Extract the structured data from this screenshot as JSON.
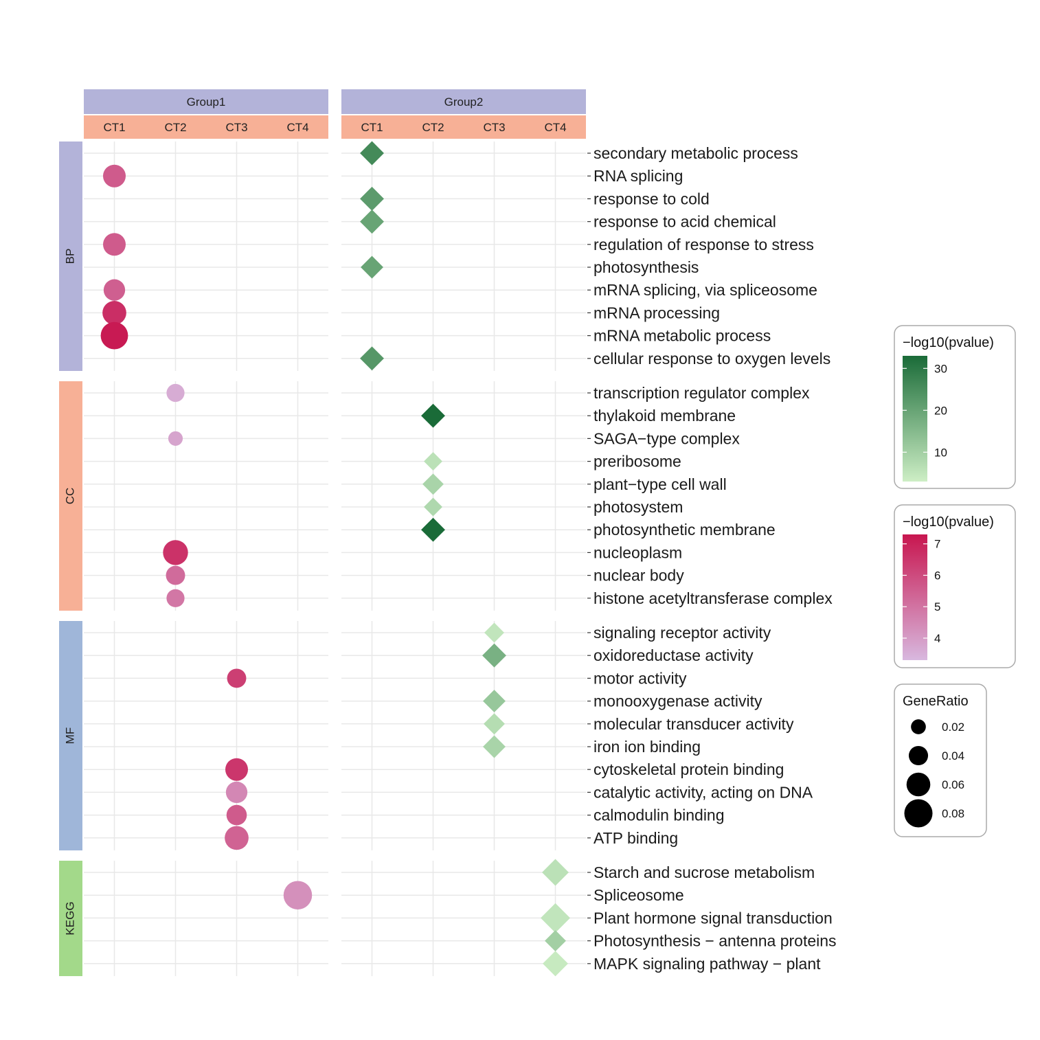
{
  "chart_data": {
    "type": "scatter",
    "groups": [
      {
        "name": "Group1",
        "cell_types": [
          "CT1",
          "CT2",
          "CT3",
          "CT4"
        ],
        "marker": "circle",
        "color_scale": "pink-red"
      },
      {
        "name": "Group2",
        "cell_types": [
          "CT1",
          "CT2",
          "CT3",
          "CT4"
        ],
        "marker": "diamond",
        "color_scale": "green"
      }
    ],
    "categories": [
      {
        "name": "BP",
        "color": "#b3b3d9",
        "terms": [
          "secondary metabolic process",
          "RNA splicing",
          "response to cold",
          "response to acid chemical",
          "regulation of response to stress",
          "photosynthesis",
          "mRNA splicing, via spliceosome",
          "mRNA processing",
          "mRNA metabolic process",
          "cellular response to oxygen levels"
        ]
      },
      {
        "name": "CC",
        "color": "#f7b096",
        "terms": [
          "transcription regulator complex",
          "thylakoid membrane",
          "SAGA−type complex",
          "preribosome",
          "plant−type cell wall",
          "photosystem",
          "photosynthetic membrane",
          "nucleoplasm",
          "nuclear body",
          "histone acetyltransferase complex"
        ]
      },
      {
        "name": "MF",
        "color": "#9fb6d9",
        "terms": [
          "signaling receptor activity",
          "oxidoreductase activity",
          "motor activity",
          "monooxygenase activity",
          "molecular transducer activity",
          "iron ion binding",
          "cytoskeletal protein binding",
          "catalytic activity, acting on DNA",
          "calmodulin binding",
          "ATP binding"
        ]
      },
      {
        "name": "KEGG",
        "color": "#a3d98a",
        "terms": [
          "Starch and sucrose metabolism",
          "Spliceosome",
          "Plant hormone signal transduction",
          "Photosynthesis − antenna proteins",
          "MAPK signaling pathway − plant"
        ]
      }
    ],
    "points": [
      {
        "group": "Group1",
        "ct": "CT1",
        "term": "RNA splicing",
        "neglog10p": 5.6,
        "gene_ratio": 0.05
      },
      {
        "group": "Group1",
        "ct": "CT1",
        "term": "regulation of response to stress",
        "neglog10p": 5.6,
        "gene_ratio": 0.05
      },
      {
        "group": "Group1",
        "ct": "CT1",
        "term": "mRNA splicing, via spliceosome",
        "neglog10p": 5.5,
        "gene_ratio": 0.045
      },
      {
        "group": "Group1",
        "ct": "CT1",
        "term": "mRNA processing",
        "neglog10p": 6.7,
        "gene_ratio": 0.055
      },
      {
        "group": "Group1",
        "ct": "CT1",
        "term": "mRNA metabolic process",
        "neglog10p": 7.2,
        "gene_ratio": 0.07
      },
      {
        "group": "Group1",
        "ct": "CT2",
        "term": "transcription regulator complex",
        "neglog10p": 3.6,
        "gene_ratio": 0.03
      },
      {
        "group": "Group1",
        "ct": "CT2",
        "term": "SAGA−type complex",
        "neglog10p": 3.8,
        "gene_ratio": 0.015
      },
      {
        "group": "Group1",
        "ct": "CT2",
        "term": "nucleoplasm",
        "neglog10p": 6.6,
        "gene_ratio": 0.06
      },
      {
        "group": "Group1",
        "ct": "CT2",
        "term": "nuclear body",
        "neglog10p": 5.2,
        "gene_ratio": 0.035
      },
      {
        "group": "Group1",
        "ct": "CT2",
        "term": "histone acetyltransferase complex",
        "neglog10p": 4.9,
        "gene_ratio": 0.03
      },
      {
        "group": "Group1",
        "ct": "CT3",
        "term": "motor activity",
        "neglog10p": 6.3,
        "gene_ratio": 0.035
      },
      {
        "group": "Group1",
        "ct": "CT3",
        "term": "cytoskeletal protein binding",
        "neglog10p": 6.5,
        "gene_ratio": 0.05
      },
      {
        "group": "Group1",
        "ct": "CT3",
        "term": "catalytic activity, acting on DNA",
        "neglog10p": 4.5,
        "gene_ratio": 0.045
      },
      {
        "group": "Group1",
        "ct": "CT3",
        "term": "calmodulin binding",
        "neglog10p": 5.6,
        "gene_ratio": 0.04
      },
      {
        "group": "Group1",
        "ct": "CT3",
        "term": "ATP binding",
        "neglog10p": 5.4,
        "gene_ratio": 0.055
      },
      {
        "group": "Group1",
        "ct": "CT4",
        "term": "Spliceosome",
        "neglog10p": 4.3,
        "gene_ratio": 0.075
      },
      {
        "group": "Group2",
        "ct": "CT1",
        "term": "secondary metabolic process",
        "neglog10p": 26,
        "gene_ratio": 0.04
      },
      {
        "group": "Group2",
        "ct": "CT1",
        "term": "response to cold",
        "neglog10p": 22,
        "gene_ratio": 0.04
      },
      {
        "group": "Group2",
        "ct": "CT1",
        "term": "response to acid chemical",
        "neglog10p": 20,
        "gene_ratio": 0.04
      },
      {
        "group": "Group2",
        "ct": "CT1",
        "term": "photosynthesis",
        "neglog10p": 20,
        "gene_ratio": 0.035
      },
      {
        "group": "Group2",
        "ct": "CT1",
        "term": "cellular response to oxygen levels",
        "neglog10p": 23,
        "gene_ratio": 0.04
      },
      {
        "group": "Group2",
        "ct": "CT2",
        "term": "thylakoid membrane",
        "neglog10p": 33,
        "gene_ratio": 0.04
      },
      {
        "group": "Group2",
        "ct": "CT2",
        "term": "preribosome",
        "neglog10p": 6,
        "gene_ratio": 0.02
      },
      {
        "group": "Group2",
        "ct": "CT2",
        "term": "plant−type cell wall",
        "neglog10p": 9,
        "gene_ratio": 0.03
      },
      {
        "group": "Group2",
        "ct": "CT2",
        "term": "photosystem",
        "neglog10p": 8,
        "gene_ratio": 0.02
      },
      {
        "group": "Group2",
        "ct": "CT2",
        "term": "photosynthetic membrane",
        "neglog10p": 33,
        "gene_ratio": 0.04
      },
      {
        "group": "Group2",
        "ct": "CT3",
        "term": "signaling receptor activity",
        "neglog10p": 5,
        "gene_ratio": 0.025
      },
      {
        "group": "Group2",
        "ct": "CT3",
        "term": "oxidoreductase activity",
        "neglog10p": 17,
        "gene_ratio": 0.04
      },
      {
        "group": "Group2",
        "ct": "CT3",
        "term": "monooxygenase activity",
        "neglog10p": 12,
        "gene_ratio": 0.035
      },
      {
        "group": "Group2",
        "ct": "CT3",
        "term": "molecular transducer activity",
        "neglog10p": 7,
        "gene_ratio": 0.03
      },
      {
        "group": "Group2",
        "ct": "CT3",
        "term": "iron ion binding",
        "neglog10p": 9,
        "gene_ratio": 0.035
      },
      {
        "group": "Group2",
        "ct": "CT4",
        "term": "Starch and sucrose metabolism",
        "neglog10p": 6,
        "gene_ratio": 0.05
      },
      {
        "group": "Group2",
        "ct": "CT4",
        "term": "Plant hormone signal transduction",
        "neglog10p": 5,
        "gene_ratio": 0.06
      },
      {
        "group": "Group2",
        "ct": "CT4",
        "term": "Photosynthesis − antenna proteins",
        "neglog10p": 10,
        "gene_ratio": 0.03
      },
      {
        "group": "Group2",
        "ct": "CT4",
        "term": "MAPK signaling pathway − plant",
        "neglog10p": 4,
        "gene_ratio": 0.045
      }
    ],
    "legends": [
      {
        "title": "−log10(pvalue)",
        "scale": "green",
        "range": [
          3,
          33
        ],
        "ticks": [
          10,
          20,
          30
        ],
        "colors": [
          "#cdeec5",
          "#1a6b38"
        ]
      },
      {
        "title": "−log10(pvalue)",
        "scale": "pink-red",
        "range": [
          3.3,
          7.3
        ],
        "ticks": [
          4,
          5,
          6,
          7
        ],
        "colors": [
          "#d8b8df",
          "#c8164f"
        ]
      },
      {
        "title": "GeneRatio",
        "scale": "size",
        "ticks": [
          0.02,
          0.04,
          0.06,
          0.08
        ],
        "labels": [
          "0.02",
          "0.04",
          "0.06",
          "0.08"
        ]
      }
    ],
    "colors": {
      "group_strip": "#b3b3d9",
      "ct_strip": "#f7b096",
      "grid": "#e8e8e8",
      "legend_border": "#aaaaaa"
    }
  }
}
